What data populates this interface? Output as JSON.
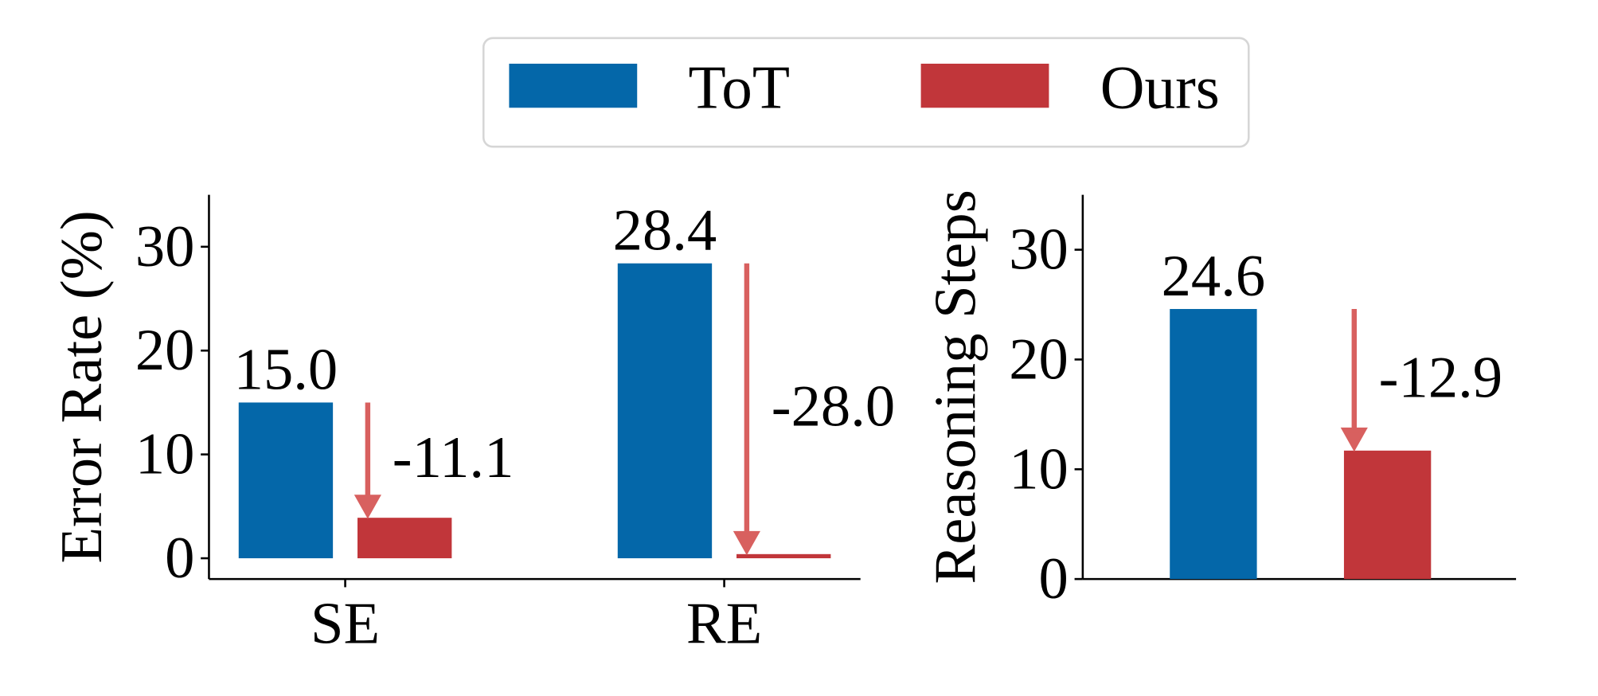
{
  "chart_data": [
    {
      "type": "bar",
      "ylabel": "Error Rate (%)",
      "categories": [
        "SE",
        "RE"
      ],
      "series": [
        {
          "name": "ToT",
          "color": "#0467a9",
          "values": [
            15.0,
            28.4
          ],
          "value_labels": [
            "15.0",
            "28.4"
          ],
          "show_values": true
        },
        {
          "name": "Ours",
          "color": "#c1363a",
          "values": [
            3.9,
            0.4
          ]
        }
      ],
      "annotations": [
        "-11.1",
        "-28.0"
      ],
      "annotation_color": "#d8605f",
      "ylim": [
        -2,
        35
      ],
      "yticks": [
        0,
        10,
        20,
        30
      ]
    },
    {
      "type": "bar",
      "ylabel": "Reasoning Steps",
      "categories": [
        null
      ],
      "series": [
        {
          "color": "#0467a9",
          "values": [
            24.6
          ],
          "show_values": true
        },
        {
          "color": "#c1363a",
          "values": [
            11.7
          ]
        }
      ],
      "annotations": [
        "-12.9"
      ],
      "annotation_color": "#d8605f",
      "ylim": [
        0,
        35
      ],
      "yticks": [
        0,
        10,
        20,
        30
      ]
    }
  ]
}
